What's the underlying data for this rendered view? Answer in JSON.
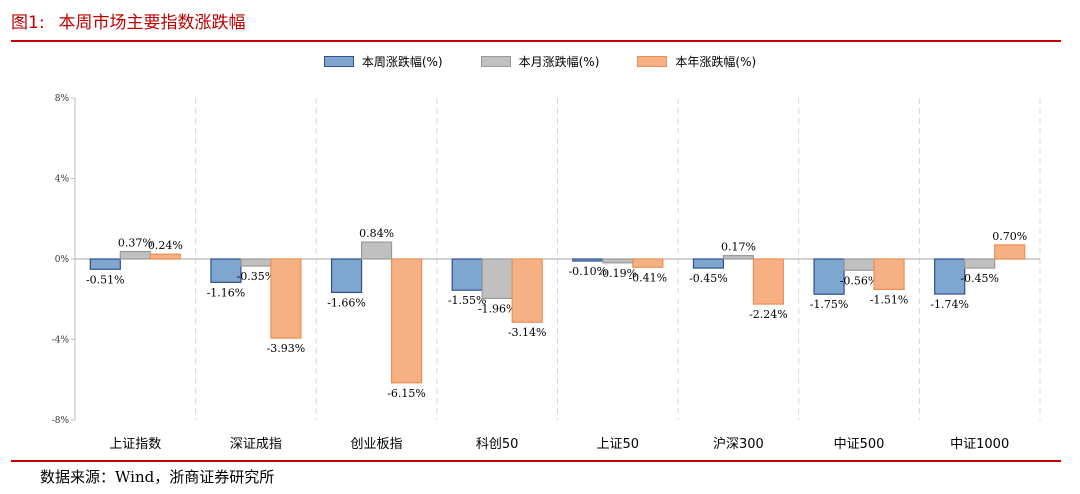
{
  "header": {
    "figure_number": "图1:",
    "title": "本周市场主要指数涨跌幅"
  },
  "source": "数据来源：Wind，浙商证券研究所",
  "colors": {
    "accent": "#c00000",
    "week_fill": "#7fa6cf",
    "week_border": "#2f4f8f",
    "month_fill": "#c0c0c0",
    "month_border": "#9a9a9a",
    "year_fill": "#f5b183",
    "year_border": "#ed8e55"
  },
  "chart_data": {
    "type": "bar",
    "categories": [
      "上证指数",
      "深证成指",
      "创业板指",
      "科创50",
      "上证50",
      "沪深300",
      "中证500",
      "中证1000"
    ],
    "series": [
      {
        "name": "本周涨跌幅(%)",
        "values": [
          -0.51,
          -1.16,
          -1.66,
          -1.55,
          -0.1,
          -0.45,
          -1.75,
          -1.74
        ],
        "labels": [
          "-0.51%",
          "-1.16%",
          "-1.66%",
          "-1.55%",
          "-0.10%",
          "-0.45%",
          "-1.75%",
          "-1.74%"
        ]
      },
      {
        "name": "本月涨跌幅(%)",
        "values": [
          0.37,
          -0.35,
          0.84,
          -1.96,
          -0.19,
          0.17,
          -0.56,
          -0.45
        ],
        "labels": [
          "0.37%",
          "-0.35%",
          "0.84%",
          "-1.96%",
          "-0.19%",
          "0.17%",
          "-0.56%",
          "-0.45%"
        ]
      },
      {
        "name": "本年涨跌幅(%)",
        "values": [
          0.24,
          -3.93,
          -6.15,
          -3.14,
          -0.41,
          -2.24,
          -1.51,
          0.7
        ],
        "labels": [
          "0.24%",
          "-3.93%",
          "-6.15%",
          "-3.14%",
          "-0.41%",
          "-2.24%",
          "-1.51%",
          "0.70%"
        ]
      }
    ],
    "ylim": [
      -8,
      8
    ],
    "yticks": [
      8,
      4,
      0,
      -4,
      -8
    ],
    "ytick_labels": [
      "8%",
      "4%",
      "0%",
      "-4%",
      "-8%"
    ],
    "grid": true,
    "legend_position": "top-center"
  }
}
